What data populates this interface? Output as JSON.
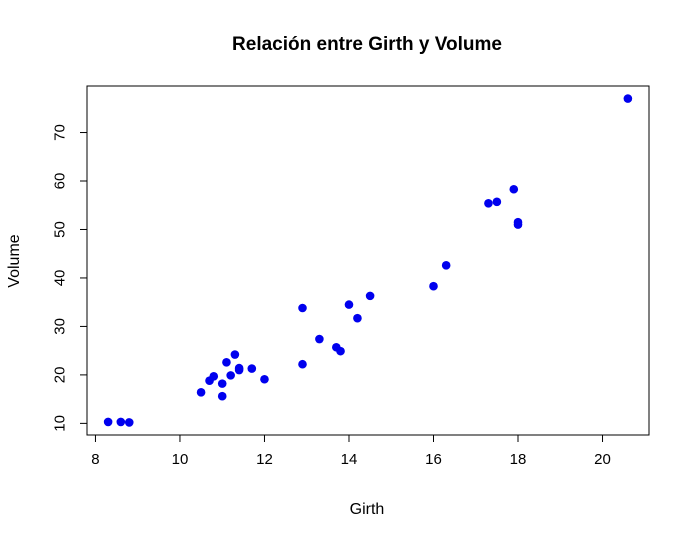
{
  "chart_data": {
    "type": "scatter",
    "title": "Relación entre Girth y Volume",
    "xlabel": "Girth",
    "ylabel": "Volume",
    "xlim": [
      7.8,
      21.1
    ],
    "ylim": [
      7.6,
      79.6
    ],
    "x_ticks": [
      8,
      10,
      12,
      14,
      16,
      18,
      20
    ],
    "y_ticks": [
      10,
      20,
      30,
      40,
      50,
      60,
      70
    ],
    "grid": false,
    "point_color": "#0000ee",
    "x": [
      8.3,
      8.6,
      8.8,
      10.5,
      10.7,
      10.8,
      11.0,
      11.0,
      11.1,
      11.2,
      11.3,
      11.4,
      11.4,
      11.7,
      12.0,
      12.9,
      12.9,
      13.3,
      13.7,
      13.8,
      14.0,
      14.2,
      14.5,
      16.0,
      16.3,
      17.3,
      17.5,
      17.9,
      18.0,
      18.0,
      20.6
    ],
    "y": [
      10.3,
      10.3,
      10.2,
      16.4,
      18.8,
      19.7,
      15.6,
      18.2,
      22.6,
      19.9,
      24.2,
      21.0,
      21.4,
      21.3,
      19.1,
      22.2,
      33.8,
      27.4,
      25.7,
      24.9,
      34.5,
      31.7,
      36.3,
      38.3,
      42.6,
      55.4,
      55.7,
      58.3,
      51.5,
      51.0,
      77.0
    ]
  }
}
